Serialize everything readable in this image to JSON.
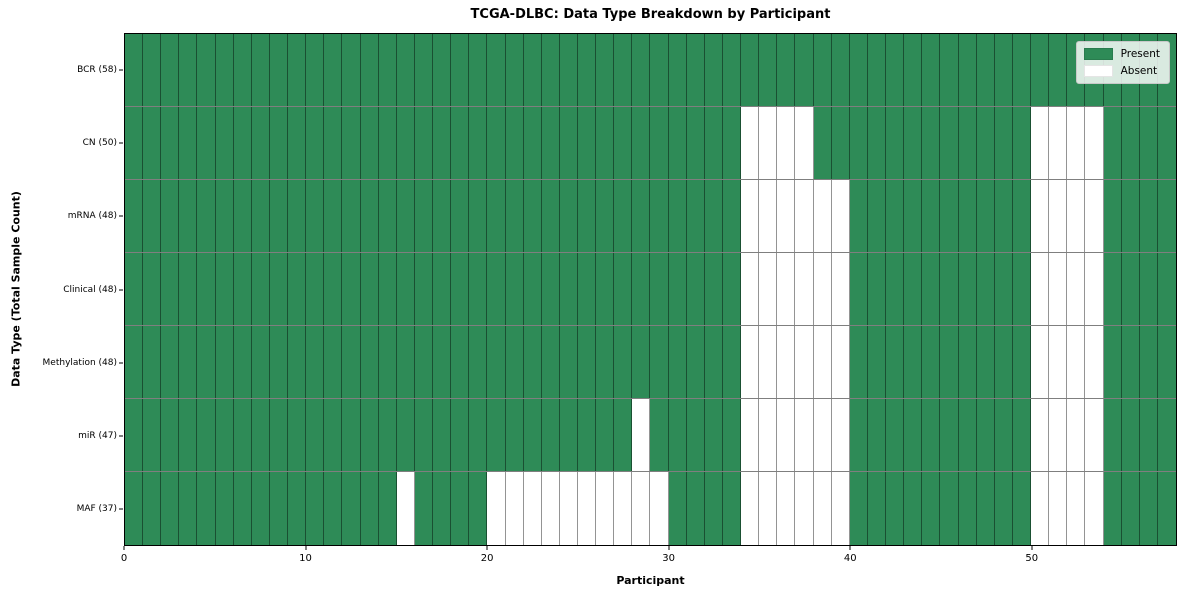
{
  "figure": {
    "title": "TCGA-DLBC: Data Type Breakdown by Participant",
    "xlabel": "Participant",
    "ylabel": "Data Type (Total Sample Count)"
  },
  "legend": {
    "entries": [
      {
        "name": "present",
        "label": "Present",
        "color": "#2e8b57"
      },
      {
        "name": "absent",
        "label": "Absent",
        "color": "#ffffff"
      }
    ],
    "position": "upper right"
  },
  "chart_data": {
    "type": "heatmap",
    "title": "TCGA-DLBC: Data Type Breakdown by Participant",
    "xlabel": "Participant",
    "ylabel": "Data Type (Total Sample Count)",
    "n_participants": 58,
    "x_range": [
      0,
      58
    ],
    "x_ticks": [
      0,
      10,
      20,
      30,
      40,
      50
    ],
    "grid": true,
    "legend_position": "upper right",
    "colors": {
      "present": "#2e8b57",
      "absent": "#ffffff",
      "gridline": "rgba(0,0,0,0.45)"
    },
    "rows": [
      {
        "label": "BCR (58)",
        "data_type": "BCR",
        "total_samples": 58,
        "absent_participants": []
      },
      {
        "label": "CN (50)",
        "data_type": "CN",
        "total_samples": 50,
        "absent_participants": [
          34,
          35,
          36,
          37,
          50,
          51,
          52,
          53
        ]
      },
      {
        "label": "mRNA (48)",
        "data_type": "mRNA",
        "total_samples": 48,
        "absent_participants": [
          34,
          35,
          36,
          37,
          38,
          39,
          50,
          51,
          52,
          53
        ]
      },
      {
        "label": "Clinical (48)",
        "data_type": "Clinical",
        "total_samples": 48,
        "absent_participants": [
          34,
          35,
          36,
          37,
          38,
          39,
          50,
          51,
          52,
          53
        ]
      },
      {
        "label": "Methylation (48)",
        "data_type": "Methylation",
        "total_samples": 48,
        "absent_participants": [
          34,
          35,
          36,
          37,
          38,
          39,
          50,
          51,
          52,
          53
        ]
      },
      {
        "label": "miR (47)",
        "data_type": "miR",
        "total_samples": 47,
        "absent_participants": [
          28,
          34,
          35,
          36,
          37,
          38,
          39,
          50,
          51,
          52,
          53
        ]
      },
      {
        "label": "MAF (37)",
        "data_type": "MAF",
        "total_samples": 37,
        "absent_participants": [
          15,
          20,
          21,
          22,
          23,
          24,
          25,
          26,
          27,
          28,
          29,
          34,
          35,
          36,
          37,
          38,
          39,
          50,
          51,
          52,
          53
        ]
      }
    ]
  }
}
